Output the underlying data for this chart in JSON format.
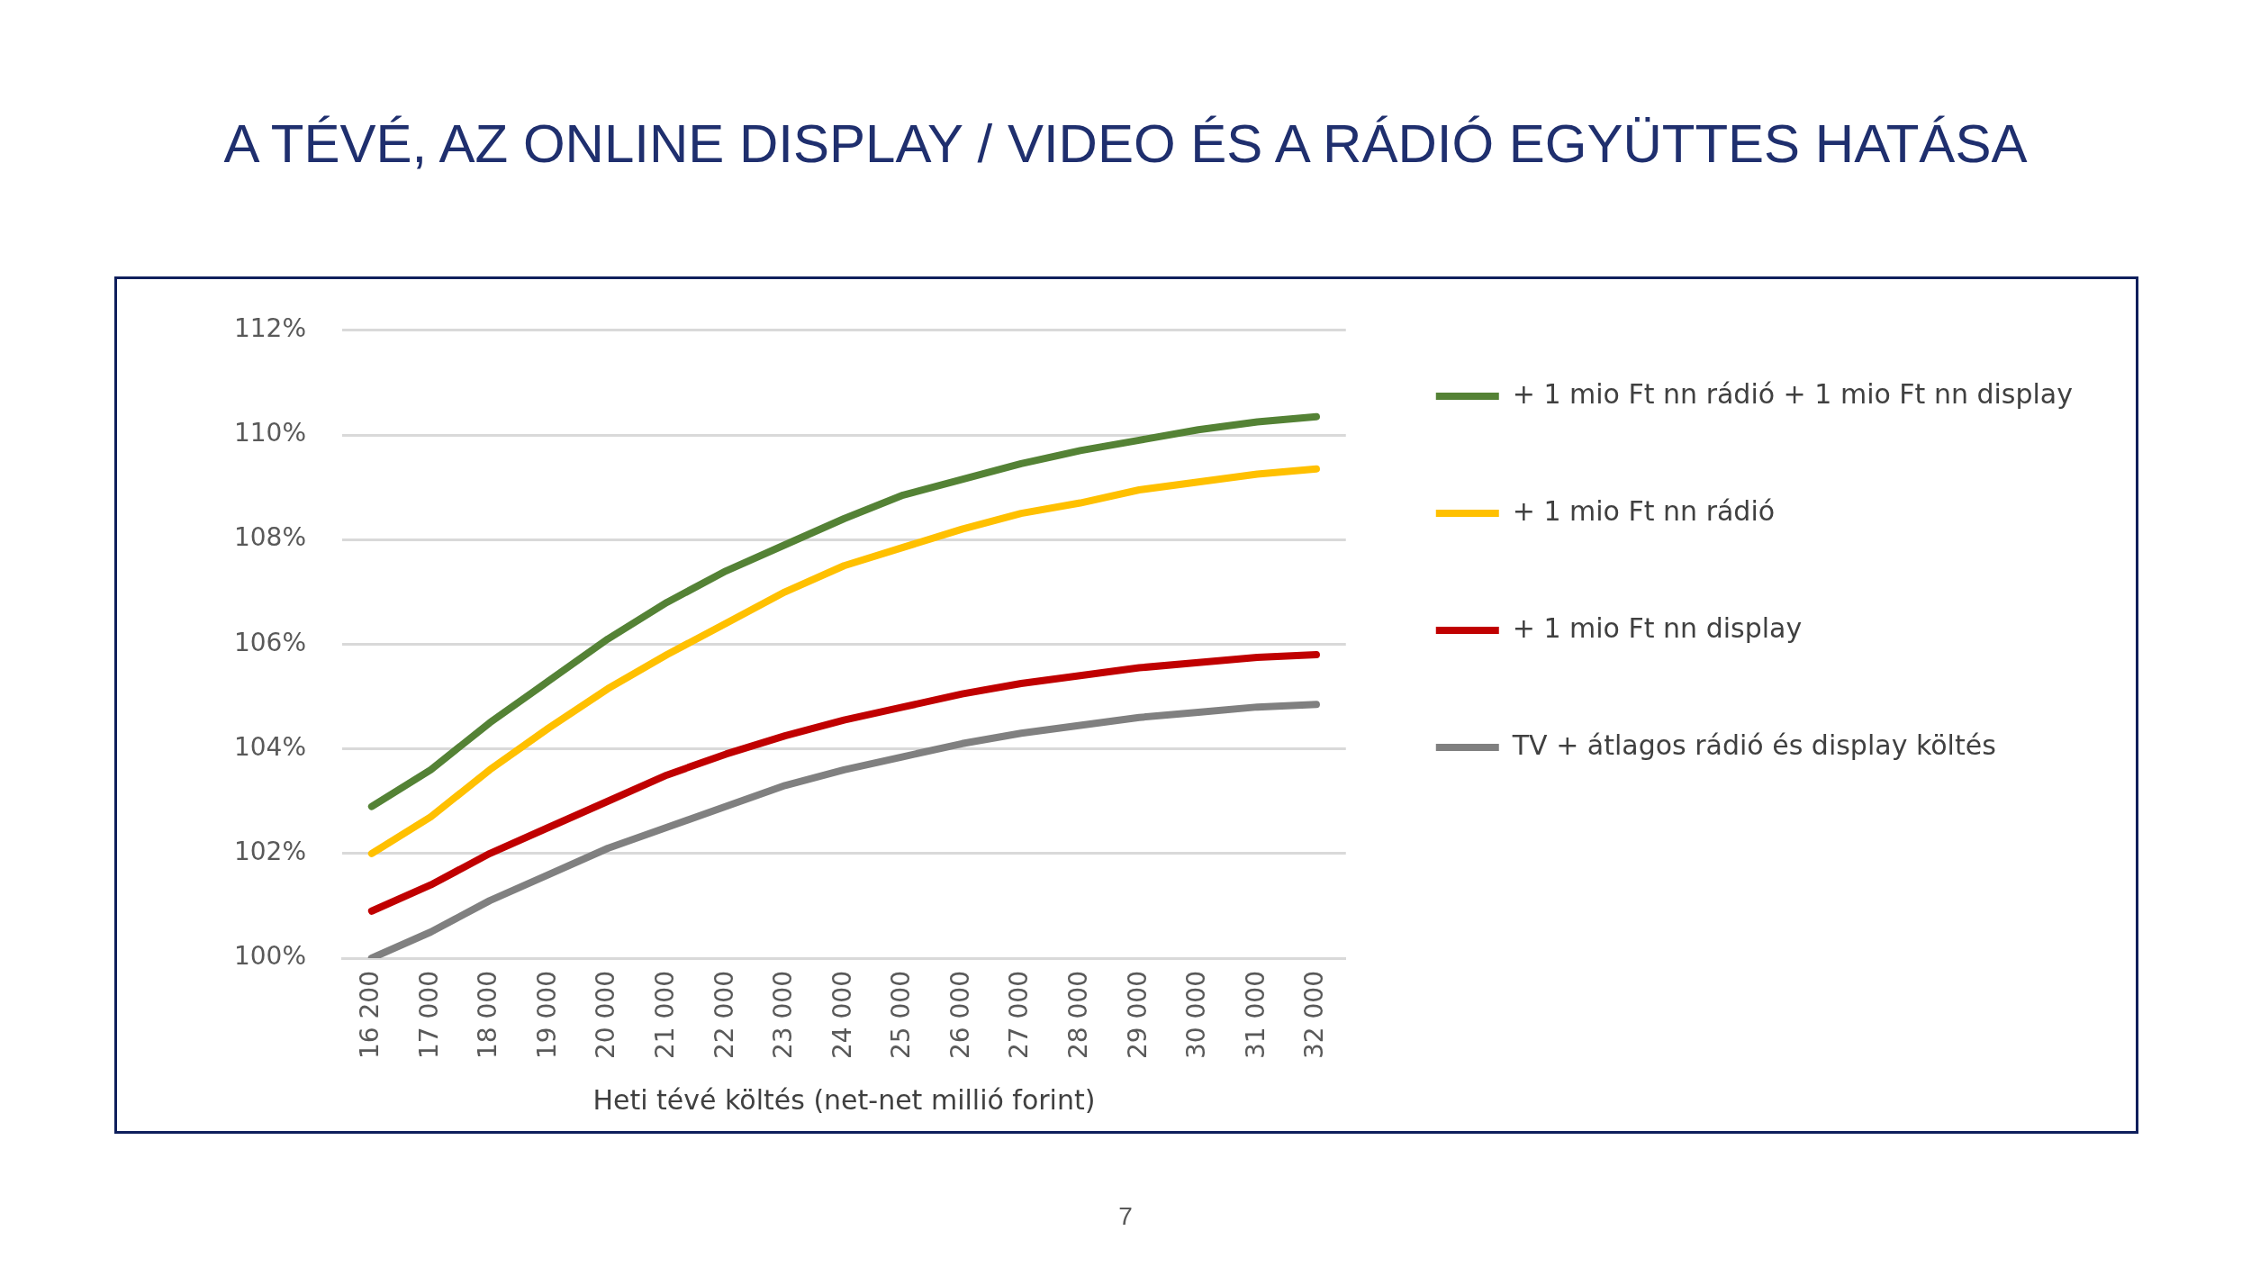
{
  "chart_data": {
    "type": "line",
    "title": "A TÉVÉ, AZ ONLINE DISPLAY / VIDEO ÉS A RÁDIÓ EGYÜTTES HATÁSA",
    "xlabel": "Heti tévé költés (net-net millió forint)",
    "categories": [
      "16 200",
      "17 000",
      "18 000",
      "19 000",
      "20 000",
      "21 000",
      "22 000",
      "23 000",
      "24 000",
      "25 000",
      "26 000",
      "27 000",
      "28 000",
      "29 000",
      "30 000",
      "31 000",
      "32 000"
    ],
    "series": [
      {
        "name": "+ 1 mio Ft nn rádió + 1 mio Ft nn display",
        "color": "#548235",
        "values": [
          102.9,
          103.6,
          104.5,
          105.3,
          106.1,
          106.8,
          107.4,
          107.9,
          108.4,
          108.85,
          109.15,
          109.45,
          109.7,
          109.9,
          110.1,
          110.25,
          110.35
        ]
      },
      {
        "name": "+ 1 mio Ft nn rádió",
        "color": "#ffc000",
        "values": [
          102.0,
          102.7,
          103.6,
          104.4,
          105.15,
          105.8,
          106.4,
          107.0,
          107.5,
          107.85,
          108.2,
          108.5,
          108.7,
          108.95,
          109.1,
          109.25,
          109.35
        ]
      },
      {
        "name": "+ 1 mio Ft nn display",
        "color": "#c00000",
        "values": [
          100.9,
          101.4,
          102.0,
          102.5,
          103.0,
          103.5,
          103.9,
          104.25,
          104.55,
          104.8,
          105.05,
          105.25,
          105.4,
          105.55,
          105.65,
          105.75,
          105.8
        ]
      },
      {
        "name": "TV + átlagos rádió és display költés",
        "color": "#808080",
        "values": [
          100.0,
          100.5,
          101.1,
          101.6,
          102.1,
          102.5,
          102.9,
          103.3,
          103.6,
          103.85,
          104.1,
          104.3,
          104.45,
          104.6,
          104.7,
          104.8,
          104.85
        ]
      }
    ],
    "ylim": [
      100,
      112
    ],
    "yticks": [
      {
        "value": 100,
        "label": "100%"
      },
      {
        "value": 102,
        "label": "102%"
      },
      {
        "value": 104,
        "label": "104%"
      },
      {
        "value": 106,
        "label": "106%"
      },
      {
        "value": 108,
        "label": "108%"
      },
      {
        "value": 110,
        "label": "110%"
      },
      {
        "value": 112,
        "label": "112%"
      }
    ],
    "grid": "y",
    "legend": "right",
    "marker": "none",
    "line_style": "solid",
    "annotations": [
      "7"
    ]
  }
}
